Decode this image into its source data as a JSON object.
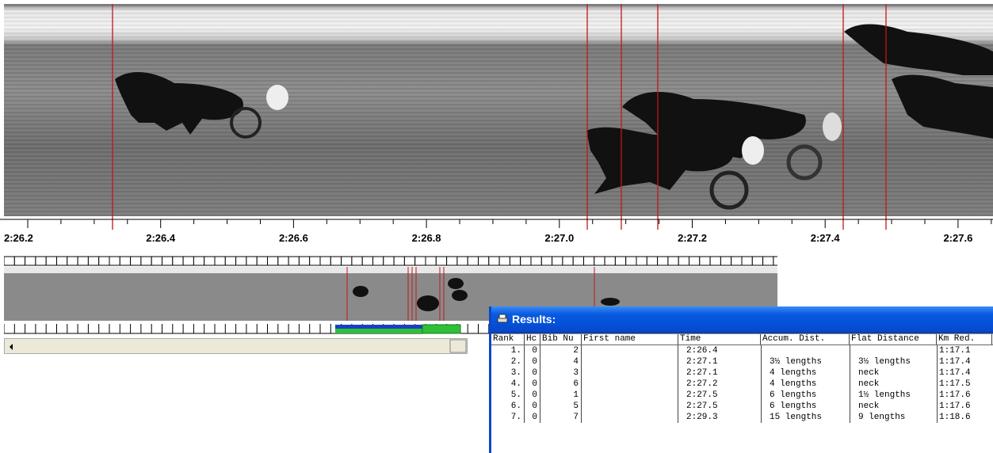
{
  "timeline": {
    "labels": [
      "2:26.2",
      "2:26.4",
      "2:26.6",
      "2:26.8",
      "2:27.0",
      "2:27.2",
      "2:27.4",
      "2:27.6"
    ]
  },
  "results": {
    "title": "Results:",
    "headers": {
      "rank": "Rank",
      "hc": "Hc",
      "bib": "Bib Nu",
      "name": "First name",
      "time": "Time",
      "accum": "Accum. Dist.",
      "flat": "Flat Distance",
      "km": "Km Red."
    },
    "rows": [
      {
        "rank": "1.",
        "hc": "0",
        "bib": "2",
        "time": "2:26.4",
        "km": "1:17.1"
      },
      {
        "rank": "2.",
        "hc": "0",
        "bib": "4",
        "time": "2:27.1",
        "accum": "3½ lengths",
        "flat": "3½ lengths",
        "km": "1:17.4"
      },
      {
        "rank": "3.",
        "hc": "0",
        "bib": "3",
        "time": "2:27.1",
        "accum": "4 lengths",
        "flat": "neck",
        "km": "1:17.4"
      },
      {
        "rank": "4.",
        "hc": "0",
        "bib": "6",
        "time": "2:27.2",
        "accum": "4 lengths",
        "flat": "neck",
        "km": "1:17.5"
      },
      {
        "rank": "5.",
        "hc": "0",
        "bib": "1",
        "time": "2:27.5",
        "accum": "6 lengths",
        "flat": "1½ lengths",
        "km": "1:17.6"
      },
      {
        "rank": "6.",
        "hc": "0",
        "bib": "5",
        "time": "2:27.5",
        "accum": "6 lengths",
        "flat": "neck",
        "km": "1:17.6"
      },
      {
        "rank": "7.",
        "hc": "0",
        "bib": "7",
        "time": "2:29.3",
        "accum": "15 lengths",
        "flat": "9 lengths",
        "km": "1:18.6"
      }
    ]
  }
}
